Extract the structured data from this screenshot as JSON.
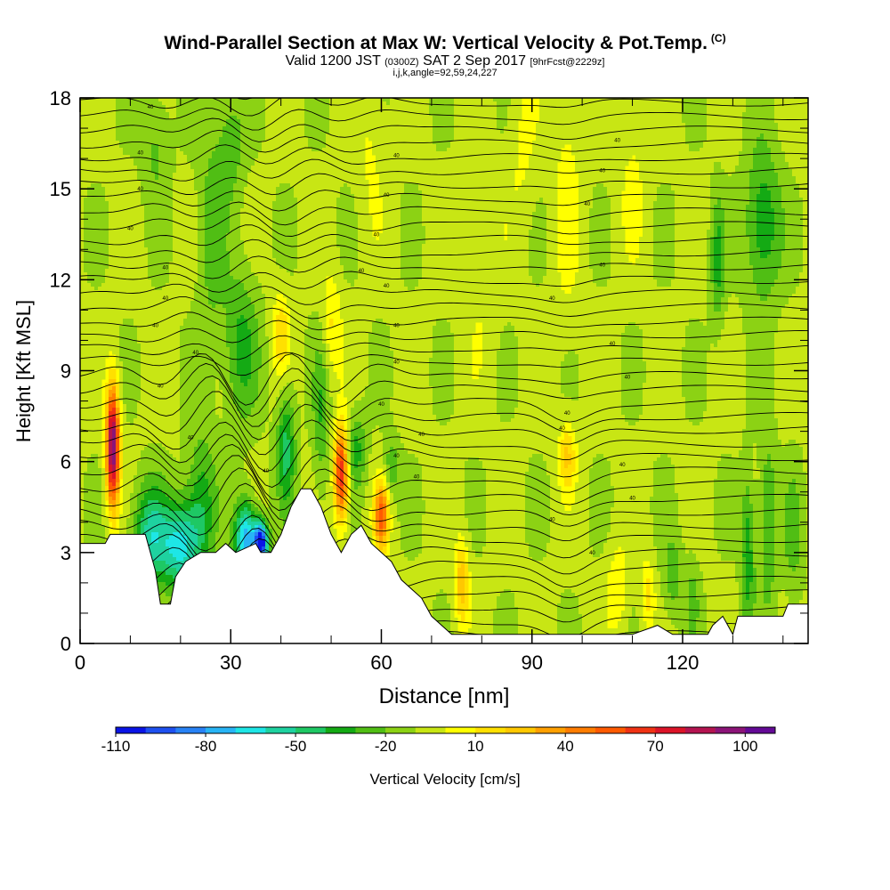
{
  "chart_data": {
    "type": "heatmap",
    "title": "Wind-Parallel Section at Max W: Vertical Velocity & Pot.Temp.",
    "title_mark": "(C)",
    "subtitle": {
      "valid": "Valid 1200 JST",
      "z": "(0300Z)",
      "date": "SAT 2 Sep 2017",
      "fcst": "[9hrFcst@2229z]"
    },
    "subtitle2": "i,j,k,angle=92,59,24,227",
    "xlabel": "Distance [nm]",
    "ylabel": "Height [Kft MSL]",
    "xlim": [
      0,
      145
    ],
    "ylim": [
      0,
      18
    ],
    "x_ticks": [
      0,
      30,
      60,
      90,
      120
    ],
    "y_ticks": [
      0,
      3,
      6,
      9,
      12,
      15,
      18
    ],
    "colorbar": {
      "label": "Vertical Velocity [cm/s]",
      "min": -110,
      "max": 110,
      "step": 10,
      "tick_values": [
        -110,
        -80,
        -50,
        -20,
        10,
        40,
        70,
        100
      ],
      "tick_labels": [
        "-110",
        "-80",
        "-50",
        "-20",
        "10",
        "40",
        "70",
        "100"
      ],
      "colors": [
        "#0a14e6",
        "#1e50f0",
        "#2882f5",
        "#28b4f5",
        "#1ee6e6",
        "#1ed2a0",
        "#1ec864",
        "#14aa14",
        "#50be14",
        "#8cd214",
        "#c8e614",
        "#ffff00",
        "#ffe000",
        "#ffc800",
        "#ffa000",
        "#ff7d00",
        "#ff5a00",
        "#f03214",
        "#dc1428",
        "#b41450",
        "#8c1478",
        "#640a96"
      ]
    },
    "terrain": [
      [
        0,
        3.3
      ],
      [
        5,
        3.3
      ],
      [
        6,
        3.6
      ],
      [
        13,
        3.6
      ],
      [
        15,
        2.4
      ],
      [
        16,
        1.3
      ],
      [
        18,
        1.3
      ],
      [
        19,
        2.2
      ],
      [
        21,
        2.7
      ],
      [
        24,
        3.0
      ],
      [
        27,
        3.0
      ],
      [
        29,
        3.3
      ],
      [
        31,
        3.0
      ],
      [
        35,
        3.3
      ],
      [
        36,
        3.0
      ],
      [
        38,
        3.0
      ],
      [
        40,
        3.6
      ],
      [
        42,
        4.5
      ],
      [
        44,
        5.1
      ],
      [
        46,
        5.1
      ],
      [
        48,
        4.5
      ],
      [
        50,
        3.6
      ],
      [
        52,
        3.0
      ],
      [
        54,
        3.6
      ],
      [
        56,
        3.9
      ],
      [
        58,
        3.3
      ],
      [
        60,
        3.0
      ],
      [
        62,
        2.7
      ],
      [
        64,
        2.1
      ],
      [
        66,
        1.8
      ],
      [
        68,
        1.5
      ],
      [
        70,
        0.9
      ],
      [
        72,
        0.6
      ],
      [
        74,
        0.3
      ],
      [
        110,
        0.3
      ],
      [
        115,
        0.6
      ],
      [
        118,
        0.3
      ],
      [
        125,
        0.3
      ],
      [
        126,
        0.6
      ],
      [
        128,
        0.9
      ],
      [
        130,
        0.3
      ],
      [
        131,
        0.9
      ],
      [
        140,
        0.9
      ],
      [
        141,
        1.3
      ],
      [
        145,
        1.3
      ]
    ],
    "contour_label": "40",
    "contours_note": "potential temperature isentropes"
  }
}
